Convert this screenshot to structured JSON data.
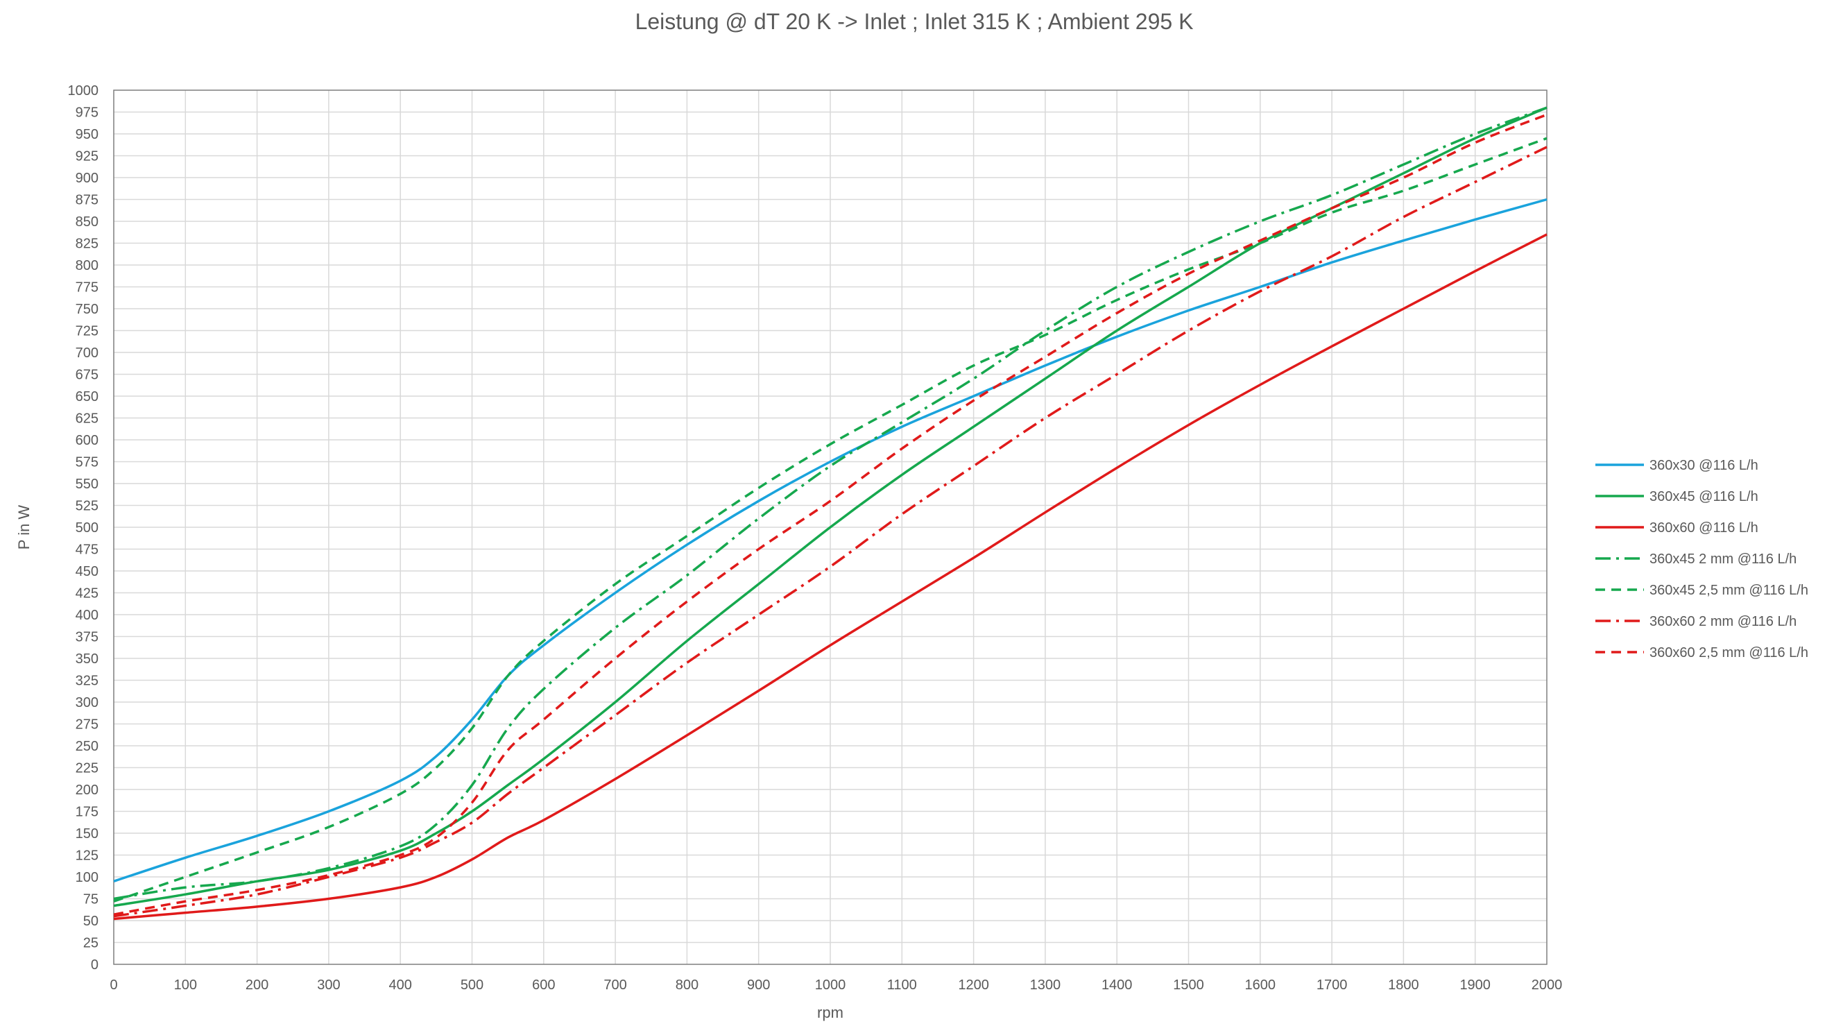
{
  "chart_data": {
    "type": "line",
    "title": "Leistung @ dT 20 K -> Inlet ; Inlet 315 K ; Ambient 295 K",
    "xlabel": "rpm",
    "ylabel": "P in W",
    "xlim": [
      0,
      2000
    ],
    "ylim": [
      0,
      1000
    ],
    "x_tick_step": 100,
    "y_tick_step": 25,
    "grid": true,
    "legend_position": "right",
    "x": [
      0,
      100,
      200,
      300,
      400,
      450,
      500,
      550,
      600,
      700,
      800,
      900,
      1000,
      1100,
      1200,
      1300,
      1400,
      1500,
      1600,
      1700,
      1800,
      1900,
      2000
    ],
    "series": [
      {
        "name": "360x30 @116 L/h",
        "color": "#1aa3dc",
        "dash": "solid",
        "values": [
          95,
          122,
          147,
          175,
          210,
          238,
          280,
          330,
          365,
          425,
          480,
          530,
          575,
          615,
          650,
          685,
          718,
          748,
          775,
          803,
          828,
          852,
          875
        ]
      },
      {
        "name": "360x45 @116 L/h",
        "color": "#16a84e",
        "dash": "solid",
        "values": [
          67,
          80,
          95,
          108,
          130,
          150,
          175,
          205,
          235,
          300,
          370,
          435,
          500,
          560,
          615,
          670,
          725,
          775,
          825,
          865,
          905,
          945,
          980
        ]
      },
      {
        "name": "360x60 @116 L/h",
        "color": "#e01a1a",
        "dash": "solid",
        "values": [
          52,
          59,
          66,
          75,
          88,
          100,
          120,
          145,
          165,
          212,
          262,
          313,
          365,
          415,
          465,
          517,
          568,
          617,
          663,
          707,
          750,
          793,
          835
        ]
      },
      {
        "name": "360x45 2 mm @116 L/h",
        "color": "#16a84e",
        "dash": "dashdot",
        "values": [
          75,
          88,
          95,
          110,
          135,
          160,
          205,
          270,
          315,
          385,
          445,
          510,
          570,
          620,
          670,
          725,
          775,
          815,
          850,
          880,
          915,
          950,
          980
        ]
      },
      {
        "name": "360x45 2,5 mm @116 L/h",
        "color": "#16a84e",
        "dash": "dash",
        "values": [
          72,
          100,
          128,
          157,
          195,
          225,
          270,
          330,
          370,
          435,
          490,
          545,
          595,
          640,
          685,
          720,
          760,
          795,
          825,
          860,
          885,
          915,
          945
        ]
      },
      {
        "name": "360x60 2 mm @116 L/h",
        "color": "#e01a1a",
        "dash": "dashdot",
        "values": [
          55,
          67,
          80,
          100,
          122,
          140,
          162,
          195,
          225,
          285,
          345,
          400,
          455,
          515,
          570,
          625,
          675,
          725,
          770,
          810,
          855,
          895,
          935
        ]
      },
      {
        "name": "360x60 2,5 mm @116 L/h",
        "color": "#e01a1a",
        "dash": "dash",
        "values": [
          57,
          72,
          85,
          102,
          125,
          145,
          185,
          245,
          280,
          350,
          415,
          475,
          530,
          590,
          645,
          695,
          745,
          790,
          828,
          865,
          900,
          940,
          972
        ]
      }
    ]
  }
}
